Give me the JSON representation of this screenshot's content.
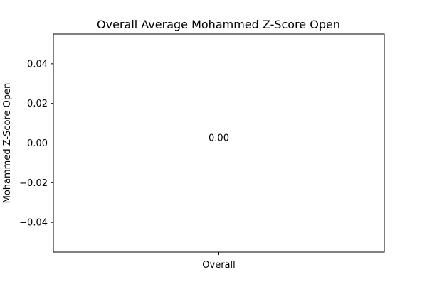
{
  "chart_data": {
    "type": "bar",
    "title": "Overall Average Mohammed Z-Score Open",
    "xlabel": "",
    "ylabel": "Mohammed Z-Score Open",
    "categories": [
      "Overall"
    ],
    "values": [
      0.0
    ],
    "data_labels": [
      "0.00"
    ],
    "ylim": [
      -0.055,
      0.055
    ],
    "yticks": [
      -0.04,
      -0.02,
      0.0,
      0.02,
      0.04
    ],
    "ytick_labels": [
      "−0.04",
      "−0.02",
      "0.00",
      "0.02",
      "0.04"
    ],
    "grid": false,
    "legend": "none",
    "bar_color": "#1f77b4"
  }
}
